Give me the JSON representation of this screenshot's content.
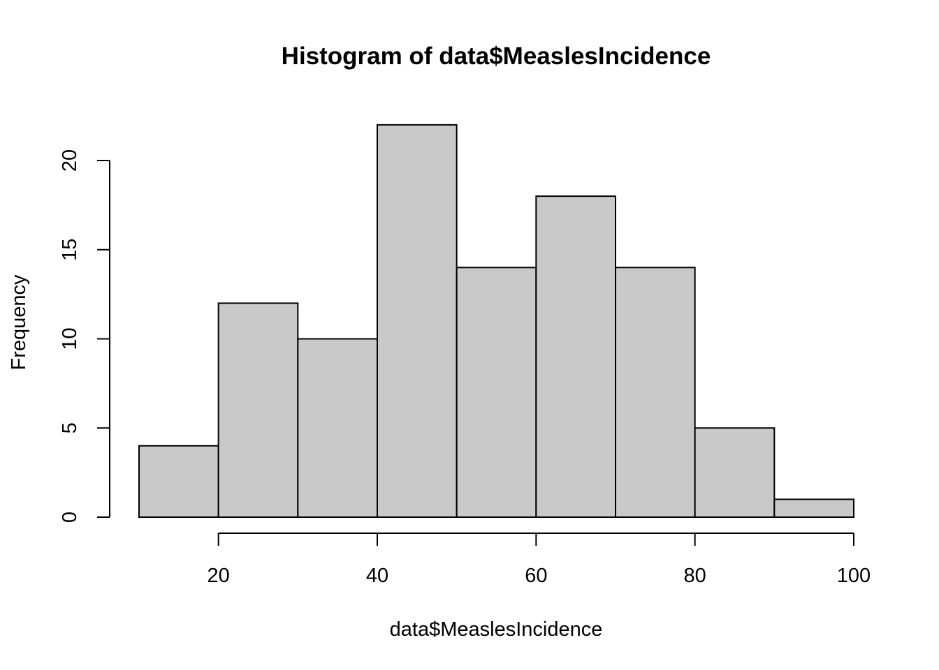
{
  "chart_data": {
    "type": "histogram",
    "title": "Histogram of data$MeaslesIncidence",
    "xlabel": "data$MeaslesIncidence",
    "ylabel": "Frequency",
    "bins": [
      {
        "x0": 10,
        "x1": 20,
        "count": 4
      },
      {
        "x0": 20,
        "x1": 30,
        "count": 12
      },
      {
        "x0": 30,
        "x1": 40,
        "count": 10
      },
      {
        "x0": 40,
        "x1": 50,
        "count": 22
      },
      {
        "x0": 50,
        "x1": 60,
        "count": 14
      },
      {
        "x0": 60,
        "x1": 70,
        "count": 18
      },
      {
        "x0": 70,
        "x1": 80,
        "count": 14
      },
      {
        "x0": 80,
        "x1": 90,
        "count": 5
      },
      {
        "x0": 90,
        "x1": 100,
        "count": 1
      }
    ],
    "xticks": [
      20,
      40,
      60,
      80,
      100
    ],
    "yticks": [
      0,
      5,
      10,
      15,
      20
    ],
    "xlim": [
      10,
      100
    ],
    "ylim": [
      0,
      22
    ],
    "bar_fill": "#c9c9c9",
    "bar_stroke": "#000000",
    "grid": false,
    "legend": "none"
  }
}
